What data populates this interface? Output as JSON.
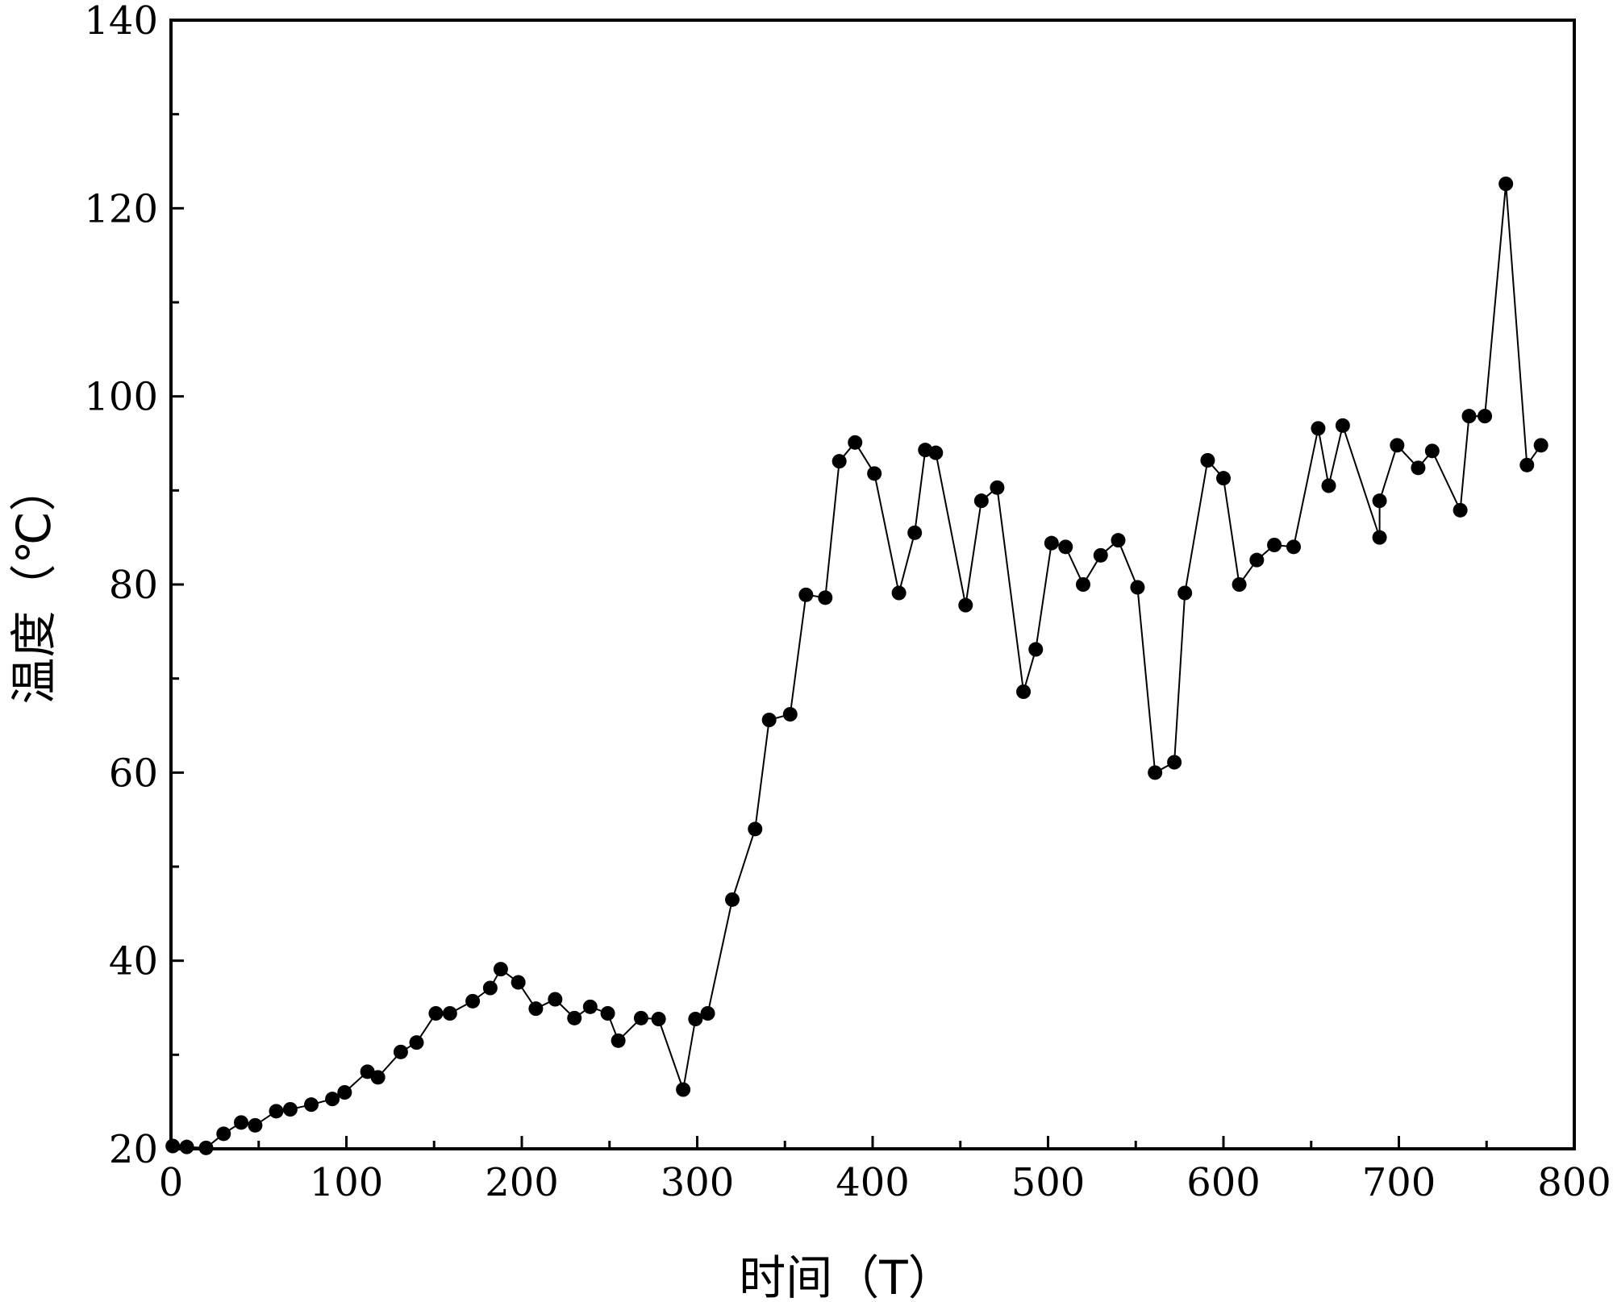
{
  "chart_data": {
    "type": "line",
    "title": "",
    "xlabel": "时间（T）",
    "ylabel": "温度（℃）",
    "xlim": [
      0,
      800
    ],
    "ylim": [
      20,
      140
    ],
    "xticks": [
      0,
      100,
      200,
      300,
      400,
      500,
      600,
      700,
      800
    ],
    "yticks": [
      20,
      40,
      60,
      80,
      100,
      120,
      140
    ],
    "x_tick_labels": [
      "0",
      "100",
      "200",
      "300",
      "400",
      "500",
      "600",
      "700",
      "800"
    ],
    "y_tick_labels": [
      "20",
      "40",
      "60",
      "80",
      "100",
      "120",
      "140"
    ],
    "grid": false,
    "legend": false,
    "marker": "filled-circle",
    "line_color": "#000000",
    "series": [
      {
        "x": [
          1,
          9,
          20,
          30,
          40,
          48,
          60,
          68,
          80,
          92,
          99,
          112,
          118,
          131,
          140,
          151,
          159,
          172,
          182,
          188,
          198,
          208,
          219,
          230,
          239,
          249,
          255,
          268,
          278,
          292,
          299,
          306,
          320,
          333,
          341,
          353,
          362,
          373,
          381,
          390,
          401,
          415,
          424,
          430,
          436,
          453,
          462,
          471,
          486,
          493,
          502,
          510,
          520,
          530,
          540,
          551,
          561,
          572,
          578,
          591,
          600,
          609,
          619,
          629,
          640,
          654,
          660,
          668,
          689,
          689,
          699,
          711,
          719,
          735,
          740,
          749,
          761,
          773,
          781
        ],
        "y": [
          20.3,
          20.2,
          20.1,
          21.6,
          22.8,
          22.5,
          24.0,
          24.2,
          24.7,
          25.3,
          26.0,
          28.2,
          27.6,
          30.3,
          31.3,
          34.4,
          34.4,
          35.7,
          37.1,
          39.1,
          37.7,
          34.9,
          35.9,
          33.9,
          35.1,
          34.4,
          31.5,
          33.9,
          33.8,
          26.3,
          33.8,
          34.4,
          46.5,
          54.0,
          65.6,
          66.2,
          78.9,
          78.6,
          93.1,
          95.1,
          91.8,
          79.1,
          85.5,
          94.3,
          94.0,
          77.8,
          88.9,
          90.3,
          68.6,
          73.1,
          84.4,
          84.0,
          80.0,
          83.1,
          84.7,
          79.7,
          60.0,
          61.1,
          79.1,
          93.2,
          91.3,
          80.0,
          82.6,
          84.2,
          84.0,
          96.6,
          90.5,
          96.9,
          85.0,
          88.9,
          94.8,
          92.4,
          94.2,
          87.9,
          97.9,
          97.9,
          122.6,
          92.7,
          94.8
        ]
      }
    ]
  }
}
